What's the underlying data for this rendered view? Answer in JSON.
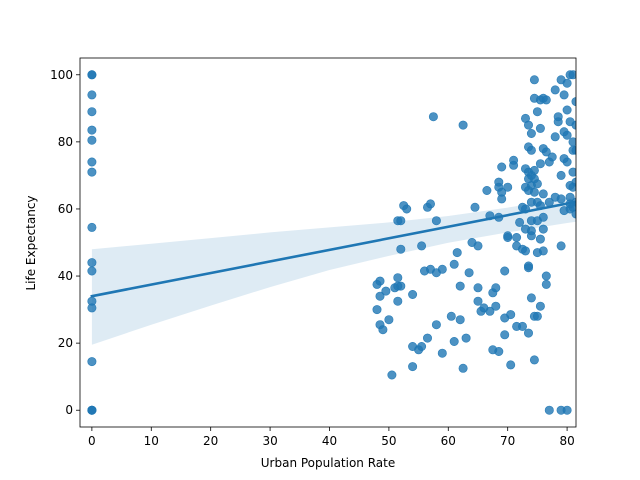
{
  "chart_data": {
    "type": "scatter",
    "title": "",
    "xlabel": "Urban Population Rate",
    "ylabel": "Life Expectancy",
    "xlim": [
      -2,
      81.5
    ],
    "ylim": [
      -5,
      105
    ],
    "xticks": [
      0,
      10,
      20,
      30,
      40,
      50,
      60,
      70,
      80
    ],
    "yticks": [
      0,
      20,
      40,
      60,
      80,
      100
    ],
    "grid": false,
    "legend": "none",
    "colors": {
      "points": "#1f77b4",
      "line": "#1f77b4",
      "band": "#1f77b4"
    },
    "regression": {
      "intercept": 34,
      "slope": 0.345,
      "x_range": [
        0,
        81.5
      ]
    },
    "confidence_band": {
      "x": [
        0,
        10,
        20,
        30,
        40,
        50,
        60,
        70,
        80,
        81.5
      ],
      "lower": [
        19.5,
        25.5,
        31.2,
        36.7,
        41.8,
        46.0,
        49.9,
        53.0,
        55.8,
        56.2
      ],
      "upper": [
        48.0,
        49.6,
        51.3,
        53.0,
        54.5,
        56.0,
        57.9,
        60.4,
        63.2,
        63.8
      ]
    },
    "points": [
      [
        0,
        100
      ],
      [
        0,
        100
      ],
      [
        0,
        94
      ],
      [
        0,
        89
      ],
      [
        0,
        83.5
      ],
      [
        0,
        80.5
      ],
      [
        0,
        74
      ],
      [
        0,
        71
      ],
      [
        0,
        54.5
      ],
      [
        0,
        44
      ],
      [
        0,
        41.5
      ],
      [
        0,
        32.5
      ],
      [
        0,
        30.5
      ],
      [
        0,
        14.5
      ],
      [
        0,
        0
      ],
      [
        0,
        0
      ],
      [
        0,
        0
      ],
      [
        48,
        37.5
      ],
      [
        48.5,
        38.5
      ],
      [
        48,
        30
      ],
      [
        48.5,
        25.5
      ],
      [
        48.5,
        34
      ],
      [
        49,
        24
      ],
      [
        49.5,
        35.5
      ],
      [
        50,
        27
      ],
      [
        50.5,
        10.5
      ],
      [
        51,
        36.5
      ],
      [
        51.5,
        37
      ],
      [
        51.5,
        39.5
      ],
      [
        51.5,
        32.5
      ],
      [
        51.5,
        56.5
      ],
      [
        52,
        56.5
      ],
      [
        52,
        48
      ],
      [
        52,
        37
      ],
      [
        52.5,
        61
      ],
      [
        53,
        60
      ],
      [
        54,
        34.5
      ],
      [
        54,
        19
      ],
      [
        54,
        13
      ],
      [
        55,
        18
      ],
      [
        55.5,
        19
      ],
      [
        55.5,
        49
      ],
      [
        56,
        41.5
      ],
      [
        56.5,
        60.5
      ],
      [
        56.5,
        21.5
      ],
      [
        57,
        42
      ],
      [
        57,
        61.5
      ],
      [
        57.5,
        87.5
      ],
      [
        58,
        25.5
      ],
      [
        58,
        56.5
      ],
      [
        58,
        41
      ],
      [
        59,
        42
      ],
      [
        59,
        17
      ],
      [
        60.5,
        28
      ],
      [
        61,
        20.5
      ],
      [
        61,
        43.5
      ],
      [
        61.5,
        47
      ],
      [
        62,
        27
      ],
      [
        62,
        37
      ],
      [
        62.5,
        85
      ],
      [
        62.5,
        12.5
      ],
      [
        63,
        21.5
      ],
      [
        63.5,
        41
      ],
      [
        64,
        50
      ],
      [
        64.5,
        60.5
      ],
      [
        65,
        49
      ],
      [
        65,
        36.5
      ],
      [
        65,
        32.5
      ],
      [
        65.5,
        29.5
      ],
      [
        66,
        30.5
      ],
      [
        66.5,
        65.5
      ],
      [
        67,
        58
      ],
      [
        67,
        29.5
      ],
      [
        67.5,
        35
      ],
      [
        67.5,
        18
      ],
      [
        68,
        31
      ],
      [
        68,
        36.5
      ],
      [
        68.5,
        68
      ],
      [
        68.5,
        66.5
      ],
      [
        68.5,
        57.5
      ],
      [
        68.5,
        17.5
      ],
      [
        69,
        72.5
      ],
      [
        69,
        65
      ],
      [
        69,
        63
      ],
      [
        69.5,
        41.5
      ],
      [
        69.5,
        27.5
      ],
      [
        69.5,
        22.5
      ],
      [
        70,
        66.5
      ],
      [
        70,
        52
      ],
      [
        70,
        51.5
      ],
      [
        70.5,
        28.5
      ],
      [
        70.5,
        13.5
      ],
      [
        71,
        73
      ],
      [
        71,
        74.5
      ],
      [
        71.5,
        51.5
      ],
      [
        71.5,
        49
      ],
      [
        71.5,
        25
      ],
      [
        72,
        56
      ],
      [
        72.5,
        60.5
      ],
      [
        72.5,
        48
      ],
      [
        72.5,
        25
      ],
      [
        73,
        87
      ],
      [
        73,
        72
      ],
      [
        73,
        66.5
      ],
      [
        73,
        60
      ],
      [
        73,
        54
      ],
      [
        73,
        47.5
      ],
      [
        73.5,
        85
      ],
      [
        73.5,
        78.5
      ],
      [
        73.5,
        71
      ],
      [
        73.5,
        69
      ],
      [
        73.5,
        65.5
      ],
      [
        73.5,
        43
      ],
      [
        73.5,
        42.5
      ],
      [
        73.5,
        23
      ],
      [
        74,
        82.5
      ],
      [
        74,
        77.5
      ],
      [
        74,
        70
      ],
      [
        74,
        67
      ],
      [
        74,
        62
      ],
      [
        74,
        56.5
      ],
      [
        74,
        53.5
      ],
      [
        74,
        52
      ],
      [
        74,
        33.5
      ],
      [
        74.5,
        98.5
      ],
      [
        74.5,
        93
      ],
      [
        74.5,
        71.5
      ],
      [
        74.5,
        69
      ],
      [
        74.5,
        65
      ],
      [
        74.5,
        28
      ],
      [
        74.5,
        15
      ],
      [
        75,
        89
      ],
      [
        75,
        67.5
      ],
      [
        75,
        62
      ],
      [
        75,
        56.5
      ],
      [
        75,
        47
      ],
      [
        75,
        28
      ],
      [
        75.5,
        92.5
      ],
      [
        75.5,
        84
      ],
      [
        75.5,
        73.5
      ],
      [
        75.5,
        61
      ],
      [
        75.5,
        51
      ],
      [
        75.5,
        31
      ],
      [
        76,
        93
      ],
      [
        76,
        78
      ],
      [
        76,
        64.5
      ],
      [
        76,
        57.5
      ],
      [
        76,
        54
      ],
      [
        76,
        47.5
      ],
      [
        76.5,
        77
      ],
      [
        76.5,
        92.5
      ],
      [
        76.5,
        40
      ],
      [
        76.5,
        37.5
      ],
      [
        77,
        74
      ],
      [
        77,
        62
      ],
      [
        77,
        0
      ],
      [
        77.5,
        75.5
      ],
      [
        78,
        95.5
      ],
      [
        78,
        81.5
      ],
      [
        78,
        63.5
      ],
      [
        78.5,
        86
      ],
      [
        78.5,
        87.5
      ],
      [
        79,
        98.5
      ],
      [
        79,
        70
      ],
      [
        79,
        63
      ],
      [
        79,
        49
      ],
      [
        79,
        0
      ],
      [
        79.5,
        94
      ],
      [
        79.5,
        83
      ],
      [
        79.5,
        59.5
      ],
      [
        79.5,
        75
      ],
      [
        80,
        97.5
      ],
      [
        80,
        89.5
      ],
      [
        80,
        82
      ],
      [
        80,
        74
      ],
      [
        80,
        0
      ],
      [
        80.5,
        100
      ],
      [
        80.5,
        86
      ],
      [
        80.5,
        67
      ],
      [
        80.5,
        63.5
      ],
      [
        80.5,
        61.5
      ],
      [
        80.5,
        60
      ],
      [
        81,
        100
      ],
      [
        81,
        80
      ],
      [
        81,
        77.5
      ],
      [
        81,
        71
      ],
      [
        81,
        66.5
      ],
      [
        81,
        60.5
      ],
      [
        81.5,
        92
      ],
      [
        81.5,
        85
      ],
      [
        81.5,
        77.5
      ],
      [
        81.5,
        68
      ],
      [
        81.5,
        62
      ],
      [
        81.5,
        58.5
      ]
    ]
  }
}
